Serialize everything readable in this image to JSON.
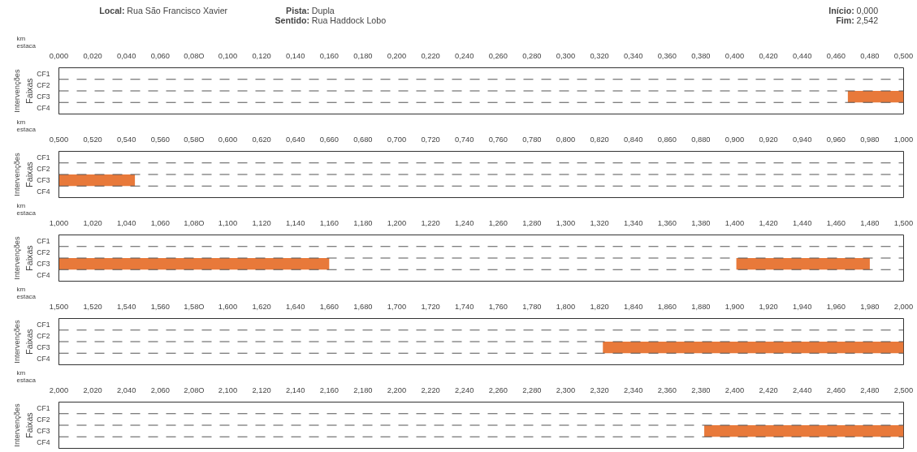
{
  "chart_data": [
    {
      "type": "bar",
      "orientation": "horizontal",
      "xlabel": "km\nestaca",
      "ylabel": "Intervenções",
      "grid": "y",
      "annotations": [
        "Faixas",
        "Local: Rua São Francisco Xavier",
        "Pista: Dupla",
        "Sentido: Rua Haddock Lobo",
        "Início: 0,000",
        "Fim: 2,542"
      ],
      "categories": [
        "CF1",
        "CF2",
        "CF3",
        "CF4"
      ],
      "xlim": [
        0,
        0.5
      ],
      "xticks": [
        {
          "value": 0,
          "label": "0,000"
        },
        {
          "value": 0.02,
          "label": "0,020"
        },
        {
          "value": 0.04,
          "label": "0,040"
        },
        {
          "value": 0.06,
          "label": "0,060"
        },
        {
          "value": 0.08,
          "label": "0,08O"
        },
        {
          "value": 0.1,
          "label": "0,100"
        },
        {
          "value": 0.12,
          "label": "0,120"
        },
        {
          "value": 0.14,
          "label": "0,140"
        },
        {
          "value": 0.16,
          "label": "0,160"
        },
        {
          "value": 0.18,
          "label": "0,180"
        },
        {
          "value": 0.2,
          "label": "0,200"
        },
        {
          "value": 0.22,
          "label": "0,220"
        },
        {
          "value": 0.24,
          "label": "0,240"
        },
        {
          "value": 0.26,
          "label": "0,260"
        },
        {
          "value": 0.28,
          "label": "0,280"
        },
        {
          "value": 0.3,
          "label": "0,300"
        },
        {
          "value": 0.32,
          "label": "0,320"
        },
        {
          "value": 0.34,
          "label": "0,340"
        },
        {
          "value": 0.36,
          "label": "0,360"
        },
        {
          "value": 0.38,
          "label": "0,380"
        },
        {
          "value": 0.4,
          "label": "0,400"
        },
        {
          "value": 0.42,
          "label": "0,420"
        },
        {
          "value": 0.44,
          "label": "0,440"
        },
        {
          "value": 0.46,
          "label": "0,460"
        },
        {
          "value": 0.48,
          "label": "0,480"
        },
        {
          "value": 0.5,
          "label": "0,500"
        }
      ],
      "series": [
        {
          "color": "#e8793a",
          "values": [
            null,
            null,
            0.033,
            null
          ],
          "base": [
            null,
            null,
            0.467,
            null
          ]
        }
      ]
    },
    {
      "type": "bar",
      "orientation": "horizontal",
      "xlabel": "km\nestaca",
      "ylabel": "Intervenções",
      "grid": "y",
      "annotations": [
        "Faixas"
      ],
      "categories": [
        "CF1",
        "CF2",
        "CF3",
        "CF4"
      ],
      "xlim": [
        0.5,
        1.0
      ],
      "xticks": [
        {
          "value": 0.5,
          "label": "0,500"
        },
        {
          "value": 0.52,
          "label": "0,520"
        },
        {
          "value": 0.54,
          "label": "0,540"
        },
        {
          "value": 0.56,
          "label": "0,560"
        },
        {
          "value": 0.58,
          "label": "0,58O"
        },
        {
          "value": 0.6,
          "label": "0,600"
        },
        {
          "value": 0.62,
          "label": "0,620"
        },
        {
          "value": 0.64,
          "label": "0,640"
        },
        {
          "value": 0.66,
          "label": "0,660"
        },
        {
          "value": 0.68,
          "label": "0,680"
        },
        {
          "value": 0.7,
          "label": "0,700"
        },
        {
          "value": 0.72,
          "label": "0,720"
        },
        {
          "value": 0.74,
          "label": "0,740"
        },
        {
          "value": 0.76,
          "label": "0,760"
        },
        {
          "value": 0.78,
          "label": "0,780"
        },
        {
          "value": 0.8,
          "label": "0,800"
        },
        {
          "value": 0.82,
          "label": "0,820"
        },
        {
          "value": 0.84,
          "label": "0,840"
        },
        {
          "value": 0.86,
          "label": "0,860"
        },
        {
          "value": 0.88,
          "label": "0,880"
        },
        {
          "value": 0.9,
          "label": "0,900"
        },
        {
          "value": 0.92,
          "label": "0,920"
        },
        {
          "value": 0.94,
          "label": "0,940"
        },
        {
          "value": 0.96,
          "label": "0,960"
        },
        {
          "value": 0.98,
          "label": "0,980"
        },
        {
          "value": 1.0,
          "label": "1,000"
        }
      ],
      "series": [
        {
          "color": "#e8793a",
          "values": [
            null,
            null,
            0.045,
            null
          ],
          "base": [
            null,
            null,
            0.5,
            null
          ]
        }
      ]
    },
    {
      "type": "bar",
      "orientation": "horizontal",
      "xlabel": "km\nestaca",
      "ylabel": "Intervenções",
      "grid": "y",
      "annotations": [
        "Faixas"
      ],
      "categories": [
        "CF1",
        "CF2",
        "CF3",
        "CF4"
      ],
      "xlim": [
        1.0,
        1.5
      ],
      "xticks": [
        {
          "value": 1.0,
          "label": "1,000"
        },
        {
          "value": 1.02,
          "label": "1,020"
        },
        {
          "value": 1.04,
          "label": "1,040"
        },
        {
          "value": 1.06,
          "label": "1,060"
        },
        {
          "value": 1.08,
          "label": "1,08O"
        },
        {
          "value": 1.1,
          "label": "1,100"
        },
        {
          "value": 1.12,
          "label": "1,120"
        },
        {
          "value": 1.14,
          "label": "1,140"
        },
        {
          "value": 1.16,
          "label": "1,160"
        },
        {
          "value": 1.18,
          "label": "1,180"
        },
        {
          "value": 1.2,
          "label": "1,200"
        },
        {
          "value": 1.22,
          "label": "1,220"
        },
        {
          "value": 1.24,
          "label": "1,240"
        },
        {
          "value": 1.26,
          "label": "1,260"
        },
        {
          "value": 1.28,
          "label": "1,280"
        },
        {
          "value": 1.3,
          "label": "1,300"
        },
        {
          "value": 1.32,
          "label": "1,320"
        },
        {
          "value": 1.34,
          "label": "1,340"
        },
        {
          "value": 1.36,
          "label": "1,360"
        },
        {
          "value": 1.38,
          "label": "1,380"
        },
        {
          "value": 1.4,
          "label": "1,400"
        },
        {
          "value": 1.42,
          "label": "1,420"
        },
        {
          "value": 1.44,
          "label": "1,440"
        },
        {
          "value": 1.46,
          "label": "1,460"
        },
        {
          "value": 1.48,
          "label": "1,480"
        },
        {
          "value": 1.5,
          "label": "1,500"
        }
      ],
      "series": [
        {
          "color": "#e8793a",
          "values": [
            null,
            null,
            0.16,
            null
          ],
          "base": [
            null,
            null,
            1.0,
            null
          ]
        },
        {
          "color": "#e8793a",
          "values": [
            null,
            null,
            0.079,
            null
          ],
          "base": [
            null,
            null,
            1.401,
            null
          ]
        }
      ]
    },
    {
      "type": "bar",
      "orientation": "horizontal",
      "xlabel": "km\nestaca",
      "ylabel": "Intervenções",
      "grid": "y",
      "annotations": [
        "Faixas"
      ],
      "categories": [
        "CF1",
        "CF2",
        "CF3",
        "CF4"
      ],
      "xlim": [
        1.5,
        2.0
      ],
      "xticks": [
        {
          "value": 1.5,
          "label": "1,500"
        },
        {
          "value": 1.52,
          "label": "1,520"
        },
        {
          "value": 1.54,
          "label": "1,540"
        },
        {
          "value": 1.56,
          "label": "1,560"
        },
        {
          "value": 1.58,
          "label": "1,58O"
        },
        {
          "value": 1.6,
          "label": "1,600"
        },
        {
          "value": 1.62,
          "label": "1,620"
        },
        {
          "value": 1.64,
          "label": "1,640"
        },
        {
          "value": 1.66,
          "label": "1,660"
        },
        {
          "value": 1.68,
          "label": "1,680"
        },
        {
          "value": 1.7,
          "label": "1,700"
        },
        {
          "value": 1.72,
          "label": "1,720"
        },
        {
          "value": 1.74,
          "label": "1,740"
        },
        {
          "value": 1.76,
          "label": "1,760"
        },
        {
          "value": 1.78,
          "label": "1,780"
        },
        {
          "value": 1.8,
          "label": "1,800"
        },
        {
          "value": 1.82,
          "label": "1,820"
        },
        {
          "value": 1.84,
          "label": "1,840"
        },
        {
          "value": 1.86,
          "label": "1,860"
        },
        {
          "value": 1.88,
          "label": "1,880"
        },
        {
          "value": 1.9,
          "label": "1,900"
        },
        {
          "value": 1.92,
          "label": "1,920"
        },
        {
          "value": 1.94,
          "label": "1,940"
        },
        {
          "value": 1.96,
          "label": "1,960"
        },
        {
          "value": 1.98,
          "label": "1,980"
        },
        {
          "value": 2.0,
          "label": "2,000"
        }
      ],
      "series": [
        {
          "color": "#e8793a",
          "values": [
            null,
            null,
            0.178,
            null
          ],
          "base": [
            null,
            null,
            1.822,
            null
          ]
        }
      ]
    },
    {
      "type": "bar",
      "orientation": "horizontal",
      "xlabel": "km\nestaca",
      "ylabel": "Intervenções",
      "grid": "y",
      "annotations": [
        "Faixas"
      ],
      "categories": [
        "CF1",
        "CF2",
        "CF3",
        "CF4"
      ],
      "xlim": [
        2.0,
        2.5
      ],
      "xticks": [
        {
          "value": 2.0,
          "label": "2,000"
        },
        {
          "value": 2.02,
          "label": "2,020"
        },
        {
          "value": 2.04,
          "label": "2,040"
        },
        {
          "value": 2.06,
          "label": "2,060"
        },
        {
          "value": 2.08,
          "label": "2,08O"
        },
        {
          "value": 2.1,
          "label": "2,100"
        },
        {
          "value": 2.12,
          "label": "2,120"
        },
        {
          "value": 2.14,
          "label": "2,140"
        },
        {
          "value": 2.16,
          "label": "2,160"
        },
        {
          "value": 2.18,
          "label": "2,180"
        },
        {
          "value": 2.2,
          "label": "2,200"
        },
        {
          "value": 2.22,
          "label": "2,220"
        },
        {
          "value": 2.24,
          "label": "2,240"
        },
        {
          "value": 2.26,
          "label": "2,260"
        },
        {
          "value": 2.28,
          "label": "2,280"
        },
        {
          "value": 2.3,
          "label": "2,300"
        },
        {
          "value": 2.32,
          "label": "2,320"
        },
        {
          "value": 2.34,
          "label": "2,340"
        },
        {
          "value": 2.36,
          "label": "2,360"
        },
        {
          "value": 2.38,
          "label": "2,380"
        },
        {
          "value": 2.4,
          "label": "2,400"
        },
        {
          "value": 2.42,
          "label": "2,420"
        },
        {
          "value": 2.44,
          "label": "2,440"
        },
        {
          "value": 2.46,
          "label": "2,460"
        },
        {
          "value": 2.48,
          "label": "2,480"
        },
        {
          "value": 2.5,
          "label": "2,500"
        }
      ],
      "series": [
        {
          "color": "#e8793a",
          "values": [
            null,
            null,
            0.118,
            null
          ],
          "base": [
            null,
            null,
            2.382,
            null
          ]
        }
      ]
    }
  ]
}
